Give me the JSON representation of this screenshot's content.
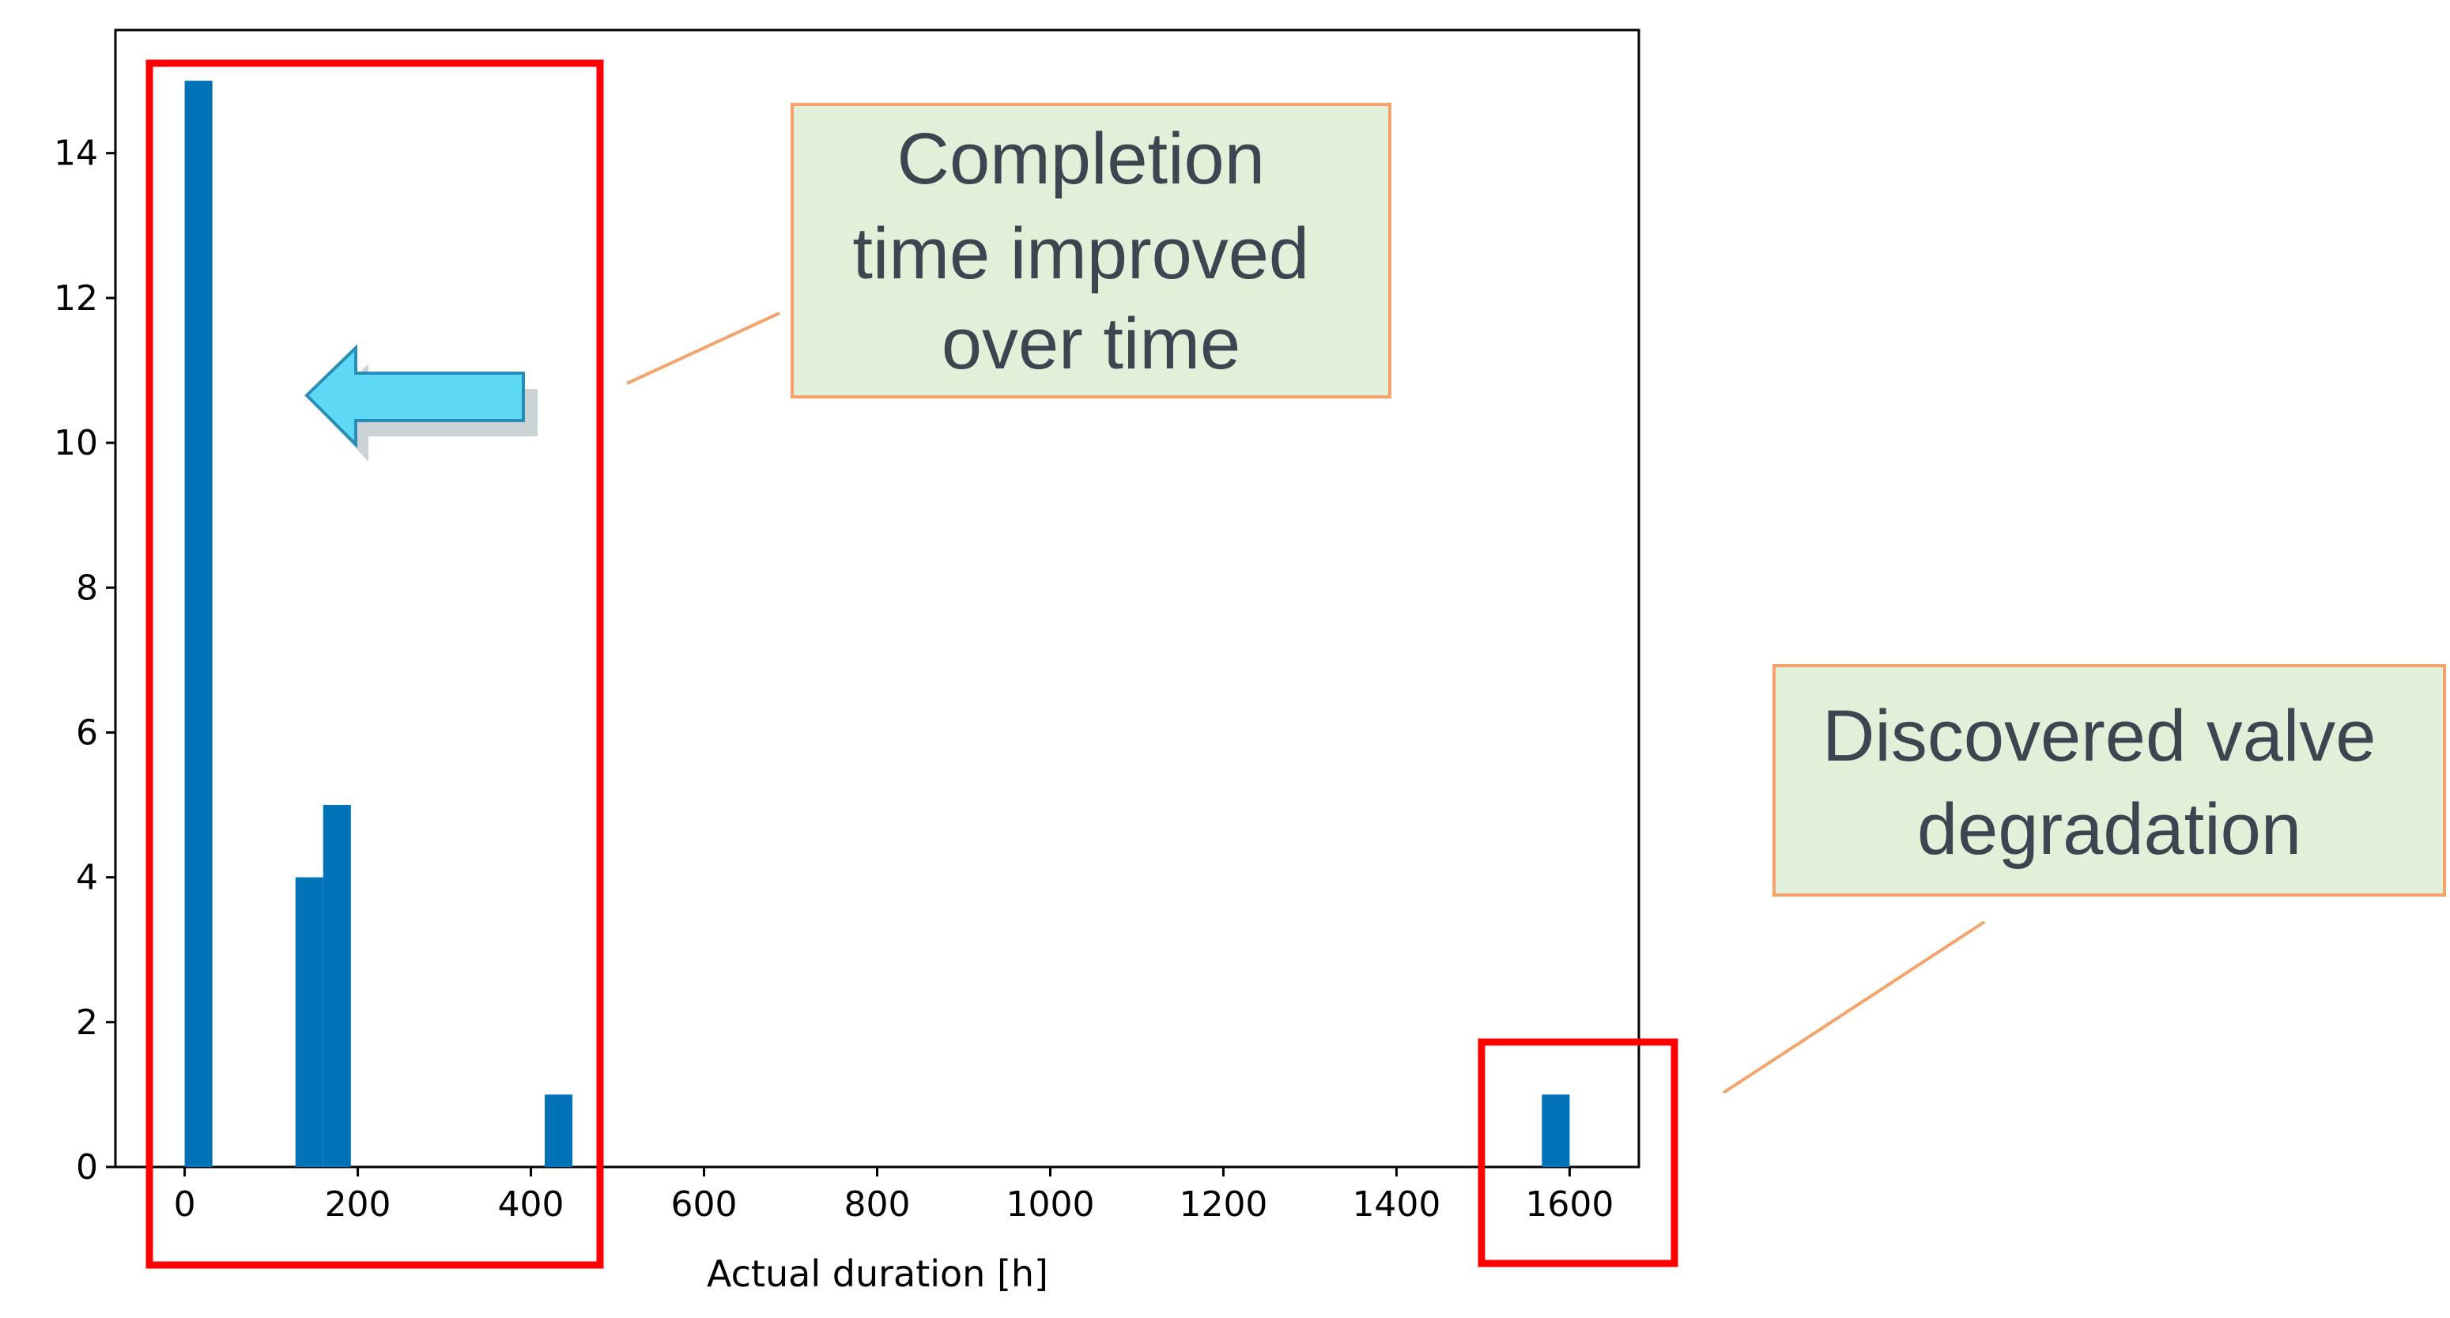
{
  "colors": {
    "bar": "#0072b8",
    "highlight_box": "#ff0000",
    "annotation_fill": "#e2efd9",
    "annotation_border": "#f4a46a",
    "arrow_fill": "#5dd9f5",
    "arrow_stroke": "#2a8db5"
  },
  "chart_data": {
    "type": "bar",
    "title": "",
    "xlabel": "Actual duration [h]",
    "ylabel": "",
    "xlim": [
      -80,
      1680
    ],
    "ylim": [
      0,
      15.7
    ],
    "grid": false,
    "x_ticks": [
      0,
      200,
      400,
      600,
      800,
      1000,
      1200,
      1400,
      1600
    ],
    "y_ticks": [
      0,
      2,
      4,
      6,
      8,
      10,
      12,
      14
    ],
    "bin_width": 32,
    "bins": [
      {
        "x_start": 0,
        "x_end": 32,
        "count": 15
      },
      {
        "x_start": 128,
        "x_end": 160,
        "count": 4
      },
      {
        "x_start": 160,
        "x_end": 192,
        "count": 5
      },
      {
        "x_start": 416,
        "x_end": 448,
        "count": 1
      },
      {
        "x_start": 1568,
        "x_end": 1600,
        "count": 1
      }
    ],
    "highlights": [
      {
        "name": "short-durations",
        "x_range": [
          -40,
          480
        ]
      },
      {
        "name": "long-duration",
        "x_range": [
          1530,
          1650
        ]
      }
    ],
    "annotations": [
      {
        "id": "improved",
        "lines": [
          "Completion",
          "time improved",
          "over time"
        ]
      },
      {
        "id": "valve",
        "lines": [
          "Discovered valve",
          "degradation"
        ]
      }
    ]
  }
}
